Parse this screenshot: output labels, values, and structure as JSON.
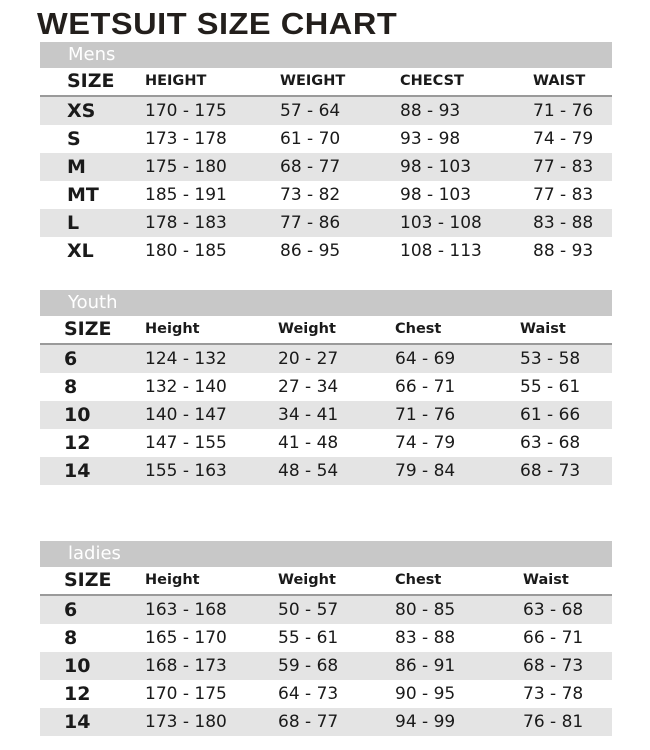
{
  "title": "WETSUIT SIZE CHART",
  "sections": [
    {
      "label": "Mens",
      "headers": [
        "SIZE",
        "HEIGHT",
        "WEIGHT",
        "CHECST",
        "WAIST"
      ],
      "rows": [
        [
          "XS",
          "170 - 175",
          "57 - 64",
          "88 - 93",
          "71 - 76"
        ],
        [
          "S",
          "173 - 178",
          "61 - 70",
          "93 - 98",
          "74 - 79"
        ],
        [
          "M",
          "175 - 180",
          "68 - 77",
          "98 - 103",
          "77 - 83"
        ],
        [
          "MT",
          "185 - 191",
          "73 - 82",
          "98 - 103",
          "77 - 83"
        ],
        [
          "L",
          "178 - 183",
          "77 - 86",
          "103 - 108",
          "83 - 88"
        ],
        [
          "XL",
          "180 - 185",
          "86 - 95",
          "108 - 113",
          "88 - 93"
        ]
      ]
    },
    {
      "label": "Youth",
      "headers": [
        "SIZE",
        "Height",
        "Weight",
        "Chest",
        "Waist"
      ],
      "rows": [
        [
          "6",
          "124 - 132",
          "20 - 27",
          "64 - 69",
          "53 - 58"
        ],
        [
          "8",
          "132 - 140",
          "27 - 34",
          "66 - 71",
          "55 - 61"
        ],
        [
          "10",
          "140 - 147",
          "34 - 41",
          "71 - 76",
          "61 - 66"
        ],
        [
          "12",
          "147 - 155",
          "41 - 48",
          "74 - 79",
          "63 - 68"
        ],
        [
          "14",
          "155 - 163",
          "48 - 54",
          "79 - 84",
          "68 - 73"
        ]
      ]
    },
    {
      "label": "ladies",
      "headers": [
        "SIZE",
        "Height",
        "Weight",
        "Chest",
        "Waist"
      ],
      "rows": [
        [
          "6",
          "163 - 168",
          "50 - 57",
          "80 - 85",
          "63 - 68"
        ],
        [
          "8",
          "165 - 170",
          "55 - 61",
          "83 - 88",
          "66 - 71"
        ],
        [
          "10",
          "168 - 173",
          "59 - 68",
          "86 - 91",
          "68 - 73"
        ],
        [
          "12",
          "170 - 175",
          "64 - 73",
          "90 - 95",
          "73 - 78"
        ],
        [
          "14",
          "173 - 180",
          "68 - 77",
          "94 - 99",
          "76 - 81"
        ]
      ]
    }
  ]
}
